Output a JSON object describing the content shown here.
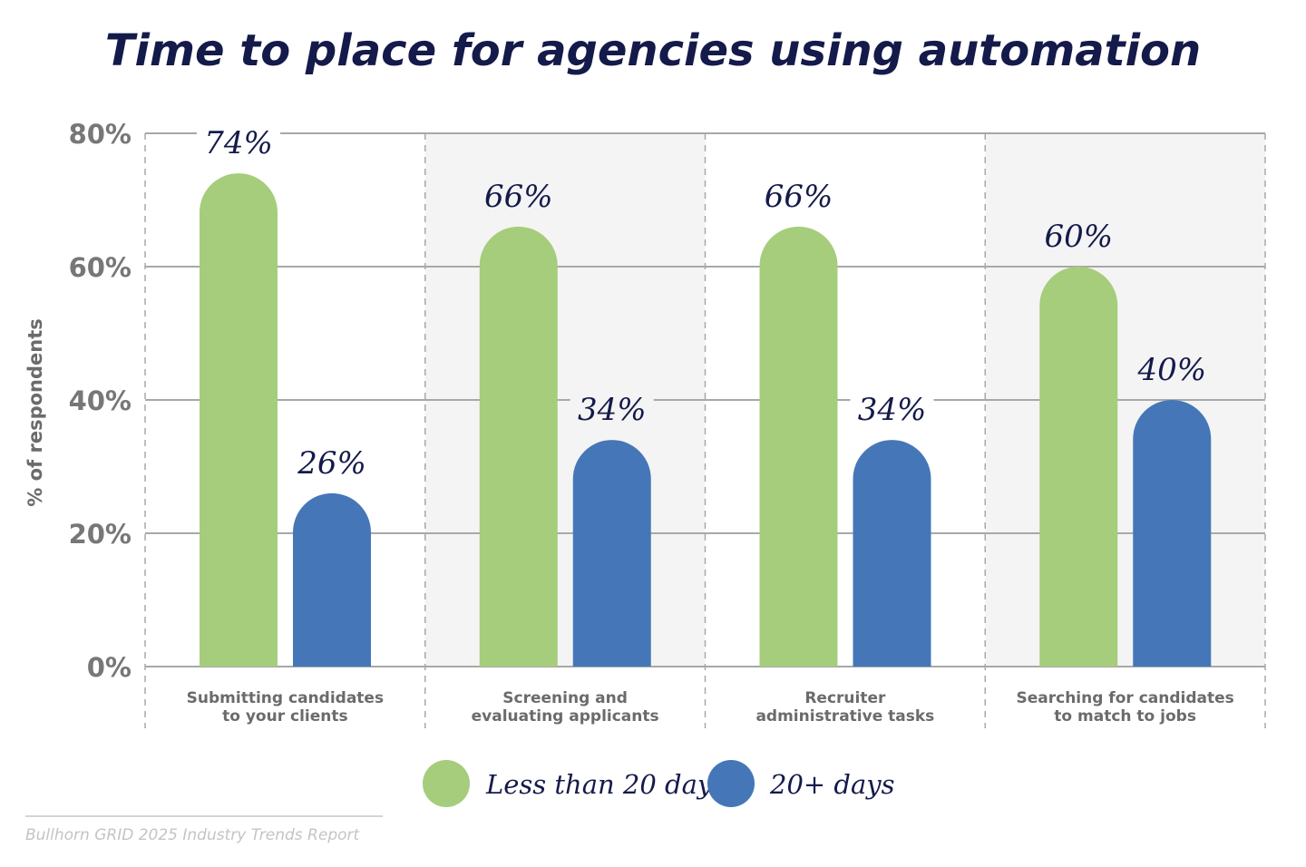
{
  "chart_data": {
    "type": "bar",
    "title": "Time to place for agencies using automation",
    "ylabel": "% of respondents",
    "xlabel": "",
    "ylim": [
      0,
      80
    ],
    "yticks": [
      "0%",
      "20%",
      "40%",
      "60%",
      "80%"
    ],
    "ytick_values": [
      0,
      20,
      40,
      60,
      80
    ],
    "grid": true,
    "legend_position": "bottom",
    "categories": [
      [
        "Submitting candidates",
        "to your clients"
      ],
      [
        "Screening and",
        "evaluating applicants"
      ],
      [
        "Recruiter",
        "administrative tasks"
      ],
      [
        "Searching for candidates",
        "to match to jobs"
      ]
    ],
    "series": [
      {
        "name": "Less than 20 days",
        "color": "#a5cd7c",
        "values": [
          74,
          66,
          66,
          60
        ],
        "labels": [
          "74%",
          "66%",
          "66%",
          "60%"
        ]
      },
      {
        "name": "20+ days",
        "color": "#4577b8",
        "values": [
          26,
          34,
          34,
          40
        ],
        "labels": [
          "26%",
          "34%",
          "34%",
          "40%"
        ]
      }
    ],
    "alternate_band_color": "#f4f4f4"
  },
  "source": "Bullhorn GRID 2025 Industry Trends Report"
}
